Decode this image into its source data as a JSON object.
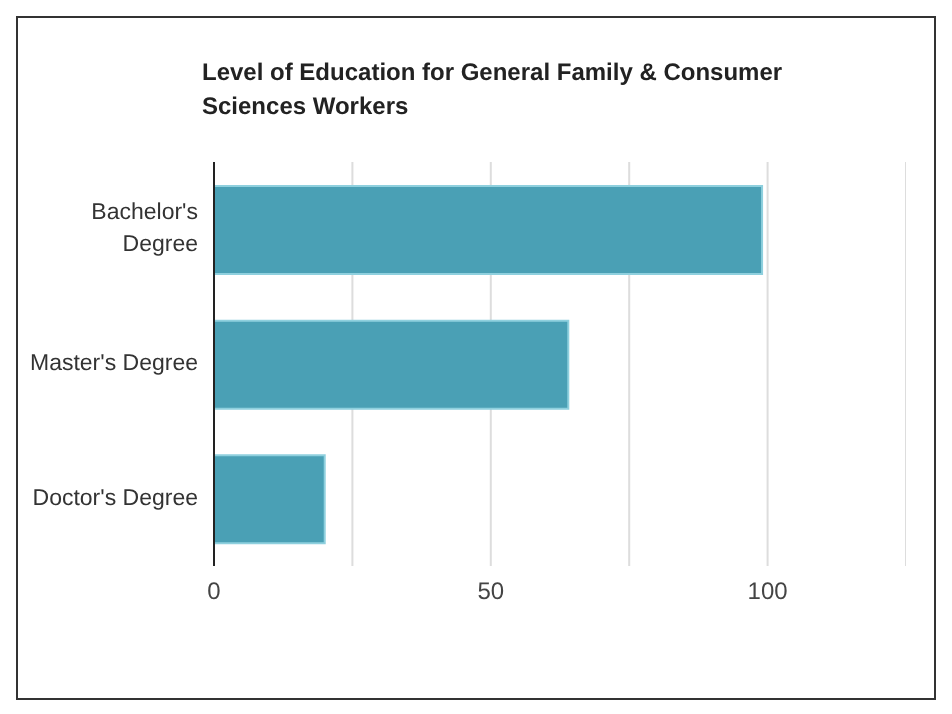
{
  "chart_data": {
    "type": "bar",
    "orientation": "horizontal",
    "title": "Level of Education for General Family & Consumer Sciences Workers",
    "categories": [
      "Bachelor's Degree",
      "Master's Degree",
      "Doctor's Degree"
    ],
    "values": [
      99,
      64,
      20
    ],
    "color": "#4aa0b5",
    "xlim": [
      0,
      125
    ],
    "xticks": [
      0,
      {
        "value": 25,
        "label": null
      },
      50,
      {
        "value": 75,
        "label": null
      },
      100
    ],
    "grid": "x"
  }
}
